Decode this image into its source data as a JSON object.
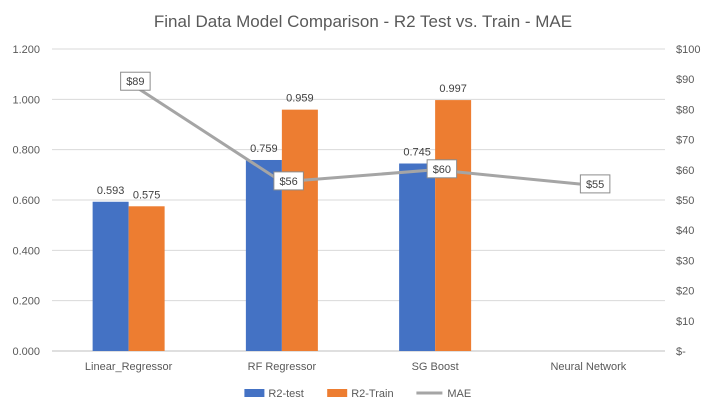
{
  "chart_data": {
    "type": "bar",
    "title": "Final Data Model Comparison - R2 Test vs. Train - MAE",
    "categories": [
      "Linear_Regressor",
      "RF Regressor",
      "SG Boost",
      "Neural Network"
    ],
    "series": [
      {
        "name": "R2-test",
        "kind": "bar",
        "axis": "left",
        "color": "#4472C4",
        "values": [
          0.593,
          0.759,
          0.745,
          null
        ],
        "labels": [
          "0.593",
          "0.759",
          "0.745",
          ""
        ]
      },
      {
        "name": "R2-Train",
        "kind": "bar",
        "axis": "left",
        "color": "#ED7D31",
        "values": [
          0.575,
          0.959,
          0.997,
          null
        ],
        "labels": [
          "0.575",
          "0.959",
          "0.997",
          ""
        ]
      },
      {
        "name": "MAE",
        "kind": "line",
        "axis": "right",
        "color": "#A5A5A5",
        "values": [
          89,
          56,
          60,
          55
        ],
        "labels": [
          "$89",
          "$56",
          "$60",
          "$55"
        ]
      }
    ],
    "y_left": {
      "lim": [
        0,
        1.2
      ],
      "ticks": [
        0,
        0.2,
        0.4,
        0.6,
        0.8,
        1.0,
        1.2
      ],
      "tick_labels": [
        "0.000",
        "0.200",
        "0.400",
        "0.600",
        "0.800",
        "1.000",
        "1.200"
      ]
    },
    "y_right": {
      "lim": [
        0,
        100
      ],
      "ticks": [
        0,
        10,
        20,
        30,
        40,
        50,
        60,
        70,
        80,
        90,
        100
      ],
      "tick_labels": [
        "$-",
        "$10",
        "$20",
        "$30",
        "$40",
        "$50",
        "$60",
        "$70",
        "$80",
        "$90",
        "$100"
      ]
    },
    "grid": true,
    "legend_position": "bottom"
  }
}
